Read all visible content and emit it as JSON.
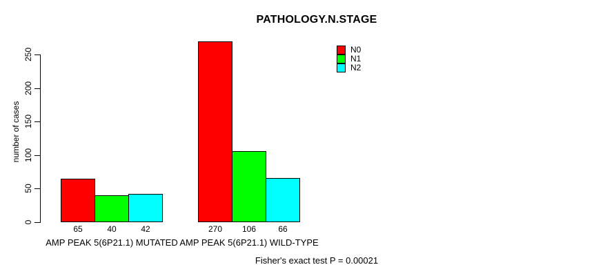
{
  "chart_data": {
    "type": "bar",
    "title": "PATHOLOGY.N.STAGE",
    "ylabel": "number of cases",
    "xlabel": "",
    "categories": [
      "AMP PEAK 5(6P21.1) MUTATED",
      "AMP PEAK 5(6P21.1) WILD-TYPE"
    ],
    "series": [
      {
        "name": "N0",
        "color": "#ff0000",
        "values": [
          65,
          270
        ]
      },
      {
        "name": "N1",
        "color": "#00ff00",
        "values": [
          40,
          106
        ]
      },
      {
        "name": "N2",
        "color": "#00ffff",
        "values": [
          42,
          66
        ]
      }
    ],
    "bar_value_labels": [
      [
        65,
        40,
        42
      ],
      [
        270,
        106,
        66
      ]
    ],
    "yticks": [
      0,
      50,
      100,
      150,
      200,
      250
    ],
    "axis_range": [
      0,
      250
    ],
    "ylim": [
      0,
      270
    ],
    "legend_position": "topright",
    "legend_entries": [
      "N0",
      "N1",
      "N2"
    ],
    "grid": false,
    "bar_border_color": "#000000",
    "background": "#ffffff",
    "annotation": "Fisher's exact test P = 0.00021"
  }
}
